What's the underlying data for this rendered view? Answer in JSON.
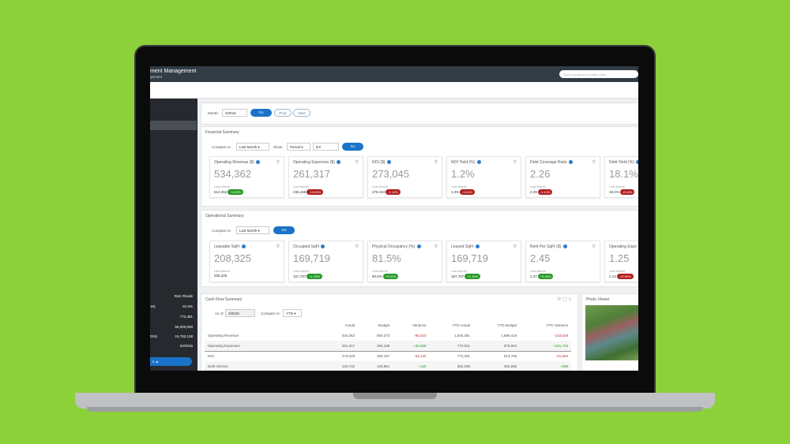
{
  "header": {
    "title": "ment Management",
    "subtitle": "gement",
    "search_placeholder": "Type a property or entity name"
  },
  "sidebar": {
    "rows": [
      {
        "label": "",
        "value": "Rick Rhode"
      },
      {
        "label": "16)",
        "value": "81.5%"
      },
      {
        "label": "",
        "value": "772,481"
      },
      {
        "label": "",
        "value": "50,000,000"
      },
      {
        "label": "016)",
        "value": "15,782,138"
      },
      {
        "label": "",
        "value": "02/2016"
      }
    ],
    "button": "s ▲"
  },
  "month_bar": {
    "label": "Month:",
    "value": "3/2016",
    "go": "Go",
    "prior": "Prior",
    "next": "Next"
  },
  "financial": {
    "title": "Financial Summary",
    "compare_label": "Compare to:",
    "compare_value": "Last Month",
    "show_label": "Show",
    "show_value": "Period",
    "unit_value": "$",
    "go": "Go",
    "cards": [
      {
        "title": "Operating Revenue ($)",
        "value": "534,362",
        "prev_label": "Last Month",
        "prev": "512,352",
        "change": "+4.30%",
        "dir": "up"
      },
      {
        "title": "Operating Expenses ($)",
        "value": "261,317",
        "prev_label": "Last Month",
        "prev": "236,159",
        "change": "-10.65%",
        "dir": "dn"
      },
      {
        "title": "NOI ($)",
        "value": "273,045",
        "prev_label": "Last Month",
        "prev": "276,194",
        "change": "-1.14%",
        "dir": "dn"
      },
      {
        "title": "NOI Yield (%)",
        "value": "1.2%",
        "prev_label": "Last Month",
        "prev": "1.2%",
        "change": "-0.01%",
        "dir": "dn"
      },
      {
        "title": "Debt Coverage Ratio",
        "value": "2.26",
        "prev_label": "Last Month",
        "prev": "2.29",
        "change": "-1.14%",
        "dir": "dn"
      },
      {
        "title": "Debt Yield (%)",
        "value": "18.1%",
        "prev_label": "Last Month",
        "prev": "18.2%",
        "change": "-0.04%",
        "dir": "dn"
      }
    ]
  },
  "operational": {
    "title": "Operational Summary",
    "compare_label": "Compare to:",
    "compare_value": "Last Month",
    "go": "Go",
    "cards": [
      {
        "title": "Leasable SqFt",
        "value": "208,325",
        "prev_label": "Last Month",
        "prev": "208,325",
        "change": "",
        "dir": ""
      },
      {
        "title": "Occupied SqFt",
        "value": "169,719",
        "prev_label": "Last Month",
        "prev": "167,797",
        "change": "+1.15%",
        "dir": "up"
      },
      {
        "title": "Physical Occupancy (%)",
        "value": "81.5%",
        "prev_label": "Last Month",
        "prev": "80.5%",
        "change": "+0.92%",
        "dir": "up"
      },
      {
        "title": "Leased SqFt",
        "value": "169,719",
        "prev_label": "Last Month",
        "prev": "167,797",
        "change": "+1.15%",
        "dir": "up"
      },
      {
        "title": "Rent Per SqFt ($)",
        "value": "2.45",
        "prev_label": "Last Month",
        "prev": "2.37",
        "change": "+3.34%",
        "dir": "up"
      },
      {
        "title": "Operating Expe",
        "value": "1.25",
        "prev_label": "Last Month",
        "prev": "1.13",
        "change": "-10.60%",
        "dir": "dn"
      }
    ]
  },
  "cashflow": {
    "title": "Cash Flow Summary",
    "asof_label": "As of:",
    "asof_value": "3/2016",
    "compare_label": "Compare to:",
    "compare_value": "YTD",
    "columns": [
      "",
      "Actual",
      "Budget",
      "Variance",
      "YTD Actual",
      "YTD Budget",
      "YTD Variance"
    ],
    "rows": [
      [
        "Operating Revenue",
        "534,362",
        "590,372",
        "-56,010",
        "1,546,391",
        "1,689,419",
        "-143,028"
      ],
      [
        "Operating Expenses",
        "261,317",
        "294,185",
        "+32,868",
        "773,911",
        "875,654",
        "+101,743"
      ],
      [
        "NOI",
        "273,045",
        "296,187",
        "-23,142",
        "772,481",
        "813,765",
        "-41,284"
      ],
      [
        "Debt Service",
        "120,731",
        "120,851",
        "+120",
        "362,196",
        "362,555",
        "+359"
      ]
    ]
  },
  "photo_viewer": {
    "title": "Photo Viewer"
  }
}
